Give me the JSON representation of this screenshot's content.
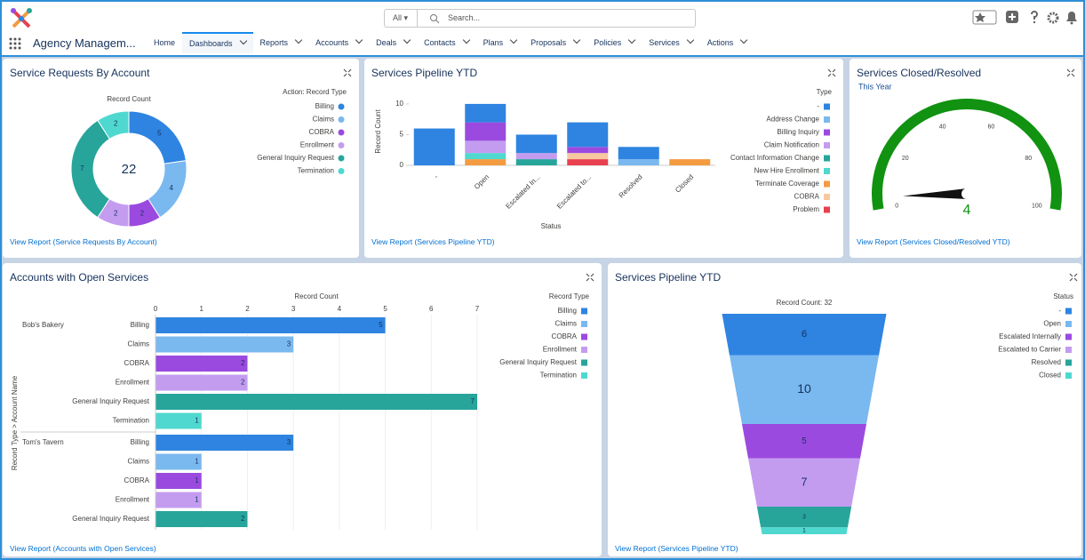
{
  "header": {
    "search_scope": "All",
    "search_placeholder": "Search...",
    "app_name": "Agency Managem...",
    "nav": [
      "Home",
      "Dashboards",
      "Reports",
      "Accounts",
      "Deals",
      "Contacts",
      "Plans",
      "Proposals",
      "Policies",
      "Services",
      "Actions"
    ],
    "active_nav": 1
  },
  "widgets": [
    {
      "type": "donut",
      "title": "Service Requests By Account",
      "measure_label": "Record Count",
      "total": 22,
      "legend_title": "Action: Record Type",
      "categories": [
        "Billing",
        "Claims",
        "COBRA",
        "Enrollment",
        "General Inquiry Request",
        "Termination"
      ],
      "values": [
        5,
        4,
        2,
        2,
        7,
        2
      ],
      "colors": [
        "#2e84e0",
        "#7ab8f0",
        "#9b4ae0",
        "#c39cf0",
        "#27a59b",
        "#4fd8cf"
      ],
      "footer": "View Report (Service Requests By Account)"
    },
    {
      "type": "stacked-column",
      "title": "Services Pipeline YTD",
      "ylabel": "Record Count",
      "xlabel": "Status",
      "ylim": [
        0,
        11
      ],
      "yticks": [
        0,
        5,
        10
      ],
      "categories": [
        "-",
        "Open",
        "Escalated In...",
        "Escalated to...",
        "Resolved",
        "Closed"
      ],
      "legend_title": "Type",
      "series": [
        {
          "name": "-",
          "color": "#2e84e0",
          "values": [
            6,
            3,
            3,
            4,
            2,
            0
          ]
        },
        {
          "name": "Address Change",
          "color": "#7ab8f0",
          "values": [
            0,
            0,
            0,
            0,
            1,
            0
          ]
        },
        {
          "name": "Billing Inquiry",
          "color": "#9b4ae0",
          "values": [
            0,
            3,
            0,
            1,
            0,
            0
          ]
        },
        {
          "name": "Claim Notification",
          "color": "#c39cf0",
          "values": [
            0,
            2,
            1,
            0,
            0,
            0
          ]
        },
        {
          "name": "Contact Information Change",
          "color": "#27a59b",
          "values": [
            0,
            0,
            1,
            0,
            0,
            0
          ]
        },
        {
          "name": "New Hire Enrollment",
          "color": "#4fd8cf",
          "values": [
            0,
            1,
            0,
            0,
            0,
            0
          ]
        },
        {
          "name": "Terminate Coverage",
          "color": "#f49b42",
          "values": [
            0,
            1,
            0,
            0,
            0,
            1
          ]
        },
        {
          "name": "COBRA",
          "color": "#f7c8a0",
          "values": [
            0,
            0,
            0,
            1,
            0,
            0
          ]
        },
        {
          "name": "Problem",
          "color": "#e8404f",
          "values": [
            0,
            0,
            0,
            1,
            0,
            0
          ]
        }
      ],
      "footer": "View Report (Services Pipeline YTD)"
    },
    {
      "type": "gauge",
      "title": "Services Closed/Resolved",
      "subtitle": "This Year",
      "value": 4,
      "lim": [
        0,
        100
      ],
      "ticks": [
        0,
        20,
        40,
        60,
        80,
        100
      ],
      "color": "#119211",
      "footer": "View Report (Services Closed/Resolved YTD)"
    },
    {
      "type": "grouped-hbar",
      "title": "Accounts with Open Services",
      "xlabel": "Record Count",
      "ylabel": "Record Type > Account Name",
      "xlim": [
        0,
        7
      ],
      "xticks": [
        0,
        1,
        2,
        3,
        4,
        5,
        6,
        7
      ],
      "legend_title": "Record Type",
      "legend": [
        "Billing",
        "Claims",
        "COBRA",
        "Enrollment",
        "General Inquiry Request",
        "Termination"
      ],
      "colors": [
        "#2e84e0",
        "#7ab8f0",
        "#9b4ae0",
        "#c39cf0",
        "#27a59b",
        "#4fd8cf"
      ],
      "groups": [
        {
          "name": "Bob's Bakery",
          "categories": [
            "Billing",
            "Claims",
            "COBRA",
            "Enrollment",
            "General Inquiry Request",
            "Termination"
          ],
          "values": [
            5,
            3,
            2,
            2,
            7,
            1
          ]
        },
        {
          "name": "Tom's Tavern",
          "categories": [
            "Billing",
            "Claims",
            "COBRA",
            "Enrollment",
            "General Inquiry Request"
          ],
          "values": [
            3,
            1,
            1,
            1,
            2
          ]
        }
      ],
      "footer": "View Report (Accounts with Open Services)"
    },
    {
      "type": "funnel",
      "title": "Services Pipeline YTD",
      "total_label": "Record Count: 32",
      "legend_title": "Status",
      "categories": [
        "-",
        "Open",
        "Escalated Internally",
        "Escalated to Carrier",
        "Resolved",
        "Closed"
      ],
      "values": [
        6,
        10,
        5,
        7,
        3,
        1
      ],
      "colors": [
        "#2e84e0",
        "#7ab8f0",
        "#9b4ae0",
        "#c39cf0",
        "#27a59b",
        "#4fd8cf"
      ],
      "footer": "View Report (Services Pipeline YTD)"
    }
  ]
}
